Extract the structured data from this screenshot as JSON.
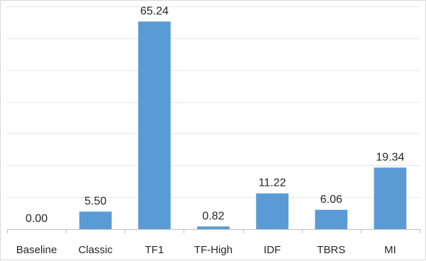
{
  "chart_data": {
    "type": "bar",
    "categories": [
      "Baseline",
      "Classic",
      "TF1",
      "TF-High",
      "IDF",
      "TBRS",
      "MI"
    ],
    "values": [
      0.0,
      5.5,
      65.24,
      0.82,
      11.22,
      6.06,
      19.34
    ],
    "data_labels": [
      "0.00",
      "5.50",
      "65.24",
      "0.82",
      "11.22",
      "6.06",
      "19.34"
    ],
    "ylim": [
      0,
      70
    ],
    "y_grid_step": 10,
    "grid": true,
    "legend": "none",
    "colors": {
      "bar": "#5b9bd5"
    }
  }
}
